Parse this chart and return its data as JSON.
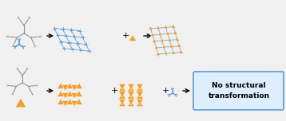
{
  "blue_color": "#5b9bd5",
  "orange_color": "#f0a030",
  "gray_color": "#888888",
  "background": "#f0f0f0",
  "no_transform_text": "No structural\ntransformation",
  "no_transform_fontsize": 6.5,
  "box_facecolor": "#ddeeff",
  "box_edgecolor": "#5b9bd5"
}
